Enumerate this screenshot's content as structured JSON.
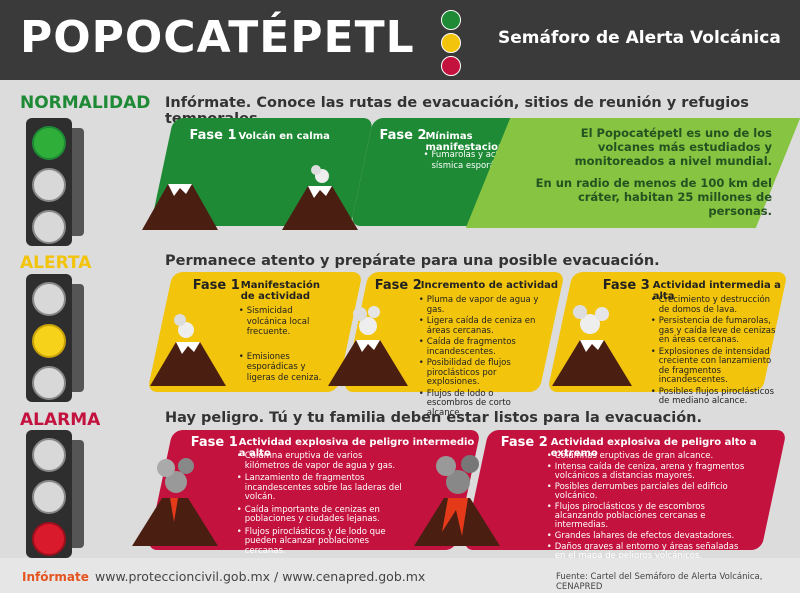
{
  "header": {
    "title": "POPOCATÉPETL",
    "subtitle": "Semáforo de Alerta Volcánica",
    "traffic_colors": [
      "#1e8a35",
      "#f2c40c",
      "#c4123f"
    ]
  },
  "levels": [
    {
      "name": "NORMALIDAD",
      "color": "#1e8a35",
      "tip": "Infórmate. Conoce las rutas de evacuación, sitios de reunión y refugios temporales.",
      "phases": [
        {
          "fase": "Fase 1",
          "title": "Volcán en calma",
          "items": []
        },
        {
          "fase": "Fase 2",
          "title": "Mínimas manifestaciones",
          "items": [
            "Fumarolas y actividad sísmica esporádica."
          ]
        }
      ],
      "info": [
        "El Popocatépetl es uno de los volcanes más estudiados y monitoreados a nivel mundial.",
        "En un radio de menos de 100 km del cráter, habitan 25 millones de personas."
      ]
    },
    {
      "name": "ALERTA",
      "color": "#f2c40c",
      "tip": "Permanece atento y prepárate para una posible evacuación.",
      "phases": [
        {
          "fase": "Fase 1",
          "title": "Manifestación de actividad",
          "items": [
            "Sismicidad volcánica local frecuente.",
            "Emisiones esporádicas y ligeras de ceniza."
          ]
        },
        {
          "fase": "Fase 2",
          "title": "Incremento de actividad",
          "items": [
            "Pluma de vapor de agua y gas.",
            "Ligera caída de ceniza en áreas cercanas.",
            "Caída de fragmentos incandescentes.",
            "Posibilidad de flujos piroclásticos por explosiones.",
            "Flujos de lodo o escombros de corto alcance."
          ]
        },
        {
          "fase": "Fase 3",
          "title": "Actividad intermedia a alta",
          "items": [
            "Crecimiento y destrucción de domos de lava.",
            "Persistencia de fumarolas, gas y caída leve de cenizas en áreas cercanas.",
            "Explosiones de intensidad creciente con lanzamiento de fragmentos incandescentes.",
            "Posibles flujos piroclásticos de mediano alcance."
          ]
        }
      ]
    },
    {
      "name": "ALARMA",
      "color": "#c4123f",
      "tip": "Hay peligro. Tú y tu familia deben estar listos para la evacuación.",
      "phases": [
        {
          "fase": "Fase 1",
          "title": "Actividad explosiva de peligro intermedio a alto",
          "items": [
            "Columna eruptiva de varios kilómetros de vapor de agua y gas.",
            "Lanzamiento de fragmentos incandescentes sobre las laderas del volcán.",
            "Caída importante de cenizas en poblaciones y ciudades lejanas.",
            "Flujos piroclásticos y de lodo que pueden alcanzar poblaciones cercanas."
          ]
        },
        {
          "fase": "Fase 2",
          "title": "Actividad explosiva de peligro alto a extremo",
          "items": [
            "Columnas eruptivas de gran alcance.",
            "Intensa caída de ceniza, arena y fragmentos volcánicos a distancias mayores.",
            "Posibles derrumbes parciales del edificio volcánico.",
            "Flujos piroclásticos y de escombros alcanzando poblaciones cercanas e intermedias.",
            "Grandes lahares de efectos devastadores.",
            "Daños graves al entorno y áreas señaladas en el mapa de peligros volcánicos."
          ]
        }
      ]
    }
  ],
  "footer": {
    "label": "Infórmate",
    "links": "www.proteccioncivil.gob.mx  /  www.cenapred.gob.mx",
    "source": "Fuente: Cartel del Semáforo de Alerta Volcánica, CENAPRED"
  }
}
